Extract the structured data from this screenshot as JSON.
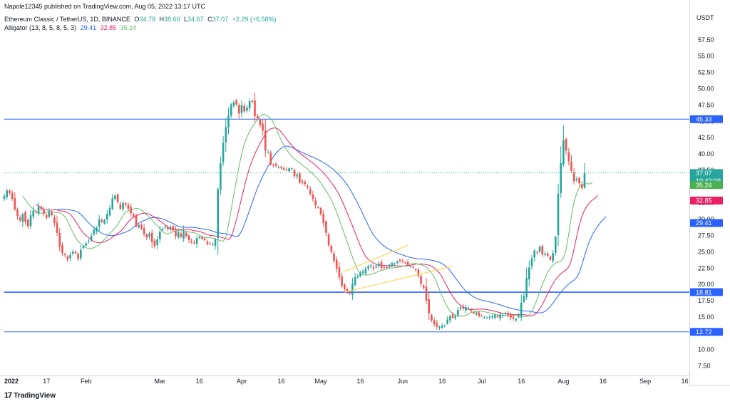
{
  "header": {
    "published": "Napole12345 published on TradingView.com, Aug 05, 2022 13:17 UTC",
    "symbol": "Ethereum Classic / TetherUS, 1D, BINANCE",
    "o_label": "O",
    "o": "34.79",
    "h_label": "H",
    "h": "38.60",
    "l_label": "L",
    "l": "34.67",
    "c_label": "C",
    "c": "37.07",
    "change": "+2.29 (+6.58%)",
    "indicator": "Alligator (13, 8, 5, 8, 5, 3)",
    "jaw_val": "29.41",
    "teeth_val": "32.85",
    "lips_val": "35.24"
  },
  "footer": {
    "brand": "TradingView",
    "logo": "17"
  },
  "colors": {
    "up": "#26a69a",
    "down": "#ef5350",
    "jaw": "#2962ff",
    "teeth": "#e91e63",
    "lips": "#66bb6a",
    "hline": "#2962ff",
    "trend": "#ffd54f"
  },
  "chart_data": {
    "type": "candlestick",
    "currency": "USDT",
    "y_axis": {
      "ticks": [
        "7.50",
        "10.00",
        "12.50",
        "15.00",
        "17.50",
        "20.00",
        "22.50",
        "25.00",
        "27.50",
        "30.00",
        "32.50",
        "35.00",
        "37.50",
        "40.00",
        "42.50",
        "45.00",
        "47.50",
        "50.00",
        "52.50",
        "55.00",
        "57.50"
      ],
      "ylim": [
        5.0,
        60.0
      ]
    },
    "x_axis": {
      "ticks": [
        {
          "label": "2022",
          "day": 0
        },
        {
          "label": "17",
          "day": 16
        },
        {
          "label": "Feb",
          "day": 31
        },
        {
          "label": "Mar",
          "day": 59
        },
        {
          "label": "16",
          "day": 74
        },
        {
          "label": "Apr",
          "day": 90
        },
        {
          "label": "16",
          "day": 105
        },
        {
          "label": "May",
          "day": 120
        },
        {
          "label": "16",
          "day": 135
        },
        {
          "label": "Jun",
          "day": 151
        },
        {
          "label": "16",
          "day": 166
        },
        {
          "label": "Jul",
          "day": 181
        },
        {
          "label": "16",
          "day": 196
        },
        {
          "label": "Aug",
          "day": 212
        },
        {
          "label": "16",
          "day": 227
        },
        {
          "label": "Sep",
          "day": 243
        },
        {
          "label": "16",
          "day": 258
        }
      ]
    },
    "price_labels": [
      {
        "text": "45.33",
        "value": 45.33,
        "color": "#2962ff"
      },
      {
        "text": "37.07",
        "sub": "10:42:09",
        "value": 37.07,
        "color": "#26a69a"
      },
      {
        "text": "35.24",
        "value": 35.24,
        "color": "#4caf50"
      },
      {
        "text": "32.85",
        "value": 32.85,
        "color": "#e91e63"
      },
      {
        "text": "29.41",
        "value": 29.41,
        "color": "#2962ff"
      },
      {
        "text": "18.81",
        "value": 18.81,
        "color": "#2962ff"
      },
      {
        "text": "12.72",
        "value": 12.72,
        "color": "#2962ff"
      }
    ],
    "horizontal_lines": [
      45.33,
      18.81,
      12.72
    ],
    "trend_lines": [
      {
        "from": [
          129,
          22.0
        ],
        "to": [
          153,
          26.0
        ]
      },
      {
        "from": [
          129,
          18.8
        ],
        "to": [
          170,
          22.8
        ]
      }
    ],
    "closes": [
      33.6,
      34.4,
      34.0,
      33.1,
      31.5,
      30.5,
      29.8,
      30.8,
      29.6,
      28.9,
      30.6,
      31.3,
      31.1,
      32.0,
      31.6,
      30.8,
      30.2,
      31.2,
      30.6,
      29.4,
      27.9,
      25.8,
      24.8,
      24.5,
      23.8,
      24.5,
      25.0,
      24.8,
      23.9,
      25.3,
      25.9,
      26.3,
      26.7,
      27.5,
      28.4,
      28.7,
      30.0,
      29.6,
      29.9,
      30.8,
      31.7,
      33.2,
      33.6,
      32.6,
      31.6,
      32.5,
      32.2,
      31.6,
      30.9,
      30.4,
      28.9,
      29.1,
      28.6,
      27.7,
      27.2,
      27.8,
      26.5,
      25.9,
      26.9,
      28.1,
      28.5,
      28.8,
      28.5,
      28.8,
      28.3,
      27.4,
      28.0,
      27.3,
      28.2,
      27.4,
      26.8,
      26.5,
      26.3,
      27.1,
      27.3,
      27.0,
      26.8,
      26.2,
      26.2,
      26.2,
      26.9,
      34.6,
      38.6,
      41.7,
      44.1,
      45.9,
      47.6,
      47.9,
      47.6,
      46.2,
      47.5,
      46.5,
      47.1,
      48.1,
      48.0,
      45.8,
      45.5,
      44.4,
      43.6,
      40.5,
      40.3,
      38.4,
      38.3,
      38.2,
      38.0,
      37.8,
      37.6,
      37.6,
      37.8,
      37.8,
      36.6,
      36.8,
      35.6,
      35.6,
      35.4,
      34.9,
      33.9,
      33.1,
      32.1,
      31.8,
      30.8,
      29.4,
      27.9,
      26.0,
      25.0,
      23.6,
      22.4,
      21.1,
      19.8,
      19.3,
      18.9,
      18.6,
      20.1,
      21.1,
      21.3,
      21.8,
      22.0,
      22.4,
      22.8,
      22.9,
      22.4,
      22.9,
      23.2,
      22.5,
      22.6,
      22.6,
      23.0,
      23.3,
      23.2,
      23.5,
      23.6,
      23.6,
      23.3,
      23.0,
      22.8,
      22.6,
      22.2,
      21.3,
      20.1,
      19.5,
      17.5,
      15.6,
      14.5,
      13.9,
      13.5,
      13.5,
      13.7,
      13.7,
      14.6,
      15.1,
      14.9,
      15.1,
      16.1,
      16.5,
      16.3,
      16.5,
      16.3,
      15.9,
      15.6,
      15.7,
      15.1,
      15.2,
      15.0,
      14.9,
      15.0,
      15.1,
      15.3,
      15.0,
      15.4,
      15.3,
      15.6,
      15.3,
      14.9,
      14.8,
      14.7,
      15.2,
      17.2,
      18.2,
      21.0,
      22.6,
      24.0,
      25.2,
      24.9,
      25.8,
      24.6,
      24.7,
      24.4,
      23.8,
      24.8,
      27.3,
      33.9,
      38.6,
      42.1,
      40.5,
      38.9,
      37.4,
      35.8,
      36.2,
      35.5,
      34.8,
      37.1
    ]
  }
}
